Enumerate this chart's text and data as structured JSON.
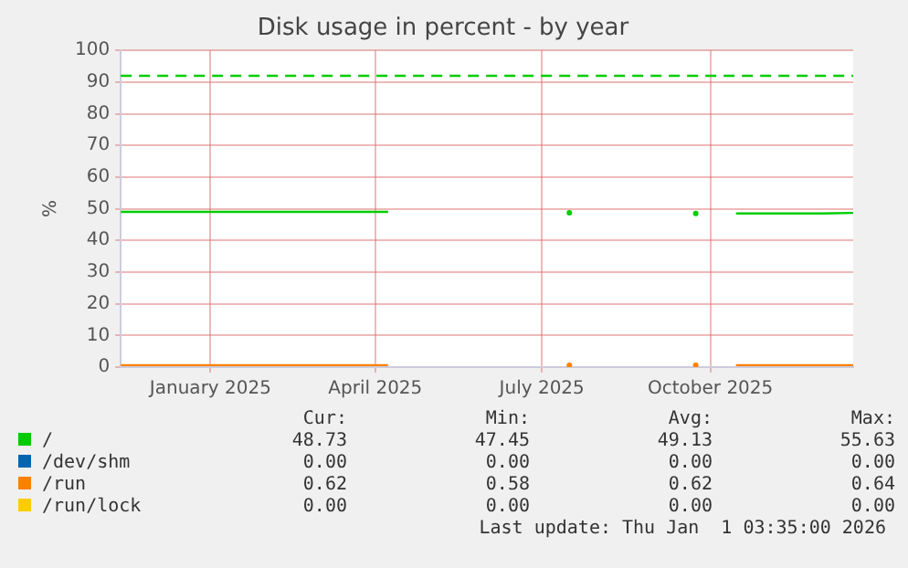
{
  "chart_data": {
    "type": "line",
    "title": "Disk usage in percent - by year",
    "ylabel": "%",
    "marker": "none",
    "x": [
      "2024-11-27",
      "2024-12-10",
      "2024-12-25",
      "2025-01-10",
      "2025-01-25",
      "2025-02-10",
      "2025-02-25",
      "2025-03-10",
      "2025-03-25",
      "2025-04-10",
      "2025-04-22",
      "2025-05-01",
      "2025-07-30",
      "2025-08-05",
      "2025-10-07",
      "2025-10-15",
      "2025-10-29",
      "2025-11-15",
      "2025-12-01",
      "2025-12-15",
      "2026-01-01"
    ],
    "series": [
      {
        "name": "/",
        "color": "#00cc00",
        "values": [
          49,
          49,
          49,
          49,
          49,
          49,
          49,
          49,
          49,
          49,
          49,
          null,
          48.7,
          null,
          48.5,
          null,
          48.5,
          48.5,
          48.5,
          48.5,
          48.7
        ]
      },
      {
        "name": "/dev/shm",
        "color": "#0066b3",
        "values": [
          null,
          null,
          null,
          null,
          null,
          null,
          null,
          null,
          null,
          null,
          null,
          null,
          null,
          null,
          null,
          null,
          null,
          null,
          null,
          null,
          null
        ]
      },
      {
        "name": "/run",
        "color": "#ff8000",
        "values": [
          0.6,
          0.6,
          0.6,
          0.6,
          0.6,
          0.6,
          0.6,
          0.6,
          0.6,
          0.6,
          0.6,
          null,
          0.6,
          null,
          0.6,
          null,
          0.6,
          0.6,
          0.6,
          0.6,
          0.6
        ]
      },
      {
        "name": "/run/lock",
        "color": "#ffcc00",
        "values": [
          null,
          null,
          null,
          null,
          null,
          null,
          null,
          null,
          null,
          null,
          null,
          null,
          null,
          null,
          null,
          null,
          null,
          null,
          null,
          null,
          null
        ]
      }
    ],
    "xlim": [
      "2024-11-27",
      "2026-01-01"
    ],
    "xticks": [
      {
        "value": "2025-01-15",
        "label": "January 2025"
      },
      {
        "value": "2025-04-15",
        "label": "April 2025"
      },
      {
        "value": "2025-07-15",
        "label": "July 2025"
      },
      {
        "value": "2025-10-15",
        "label": "October 2025"
      }
    ],
    "ylim": [
      0,
      100
    ],
    "yticks": [
      0,
      10,
      20,
      30,
      40,
      50,
      60,
      70,
      80,
      90,
      100
    ],
    "grid": true,
    "legend": "bottom",
    "ref_lines": [
      {
        "axis": "y",
        "value": 92,
        "color": "#00cc00",
        "line_style": "dashed"
      }
    ],
    "annotations": [
      "Cur:",
      "Min:",
      "Avg:",
      "Max:",
      "48.73",
      "47.45",
      "49.13",
      "55.63",
      "0.00",
      "0.00",
      "0.00",
      "0.00",
      "0.62",
      "0.58",
      "0.62",
      "0.64",
      "0.00",
      "0.00",
      "0.00",
      "0.00",
      "Last update: Thu Jan  1 03:35:00 2026"
    ]
  }
}
